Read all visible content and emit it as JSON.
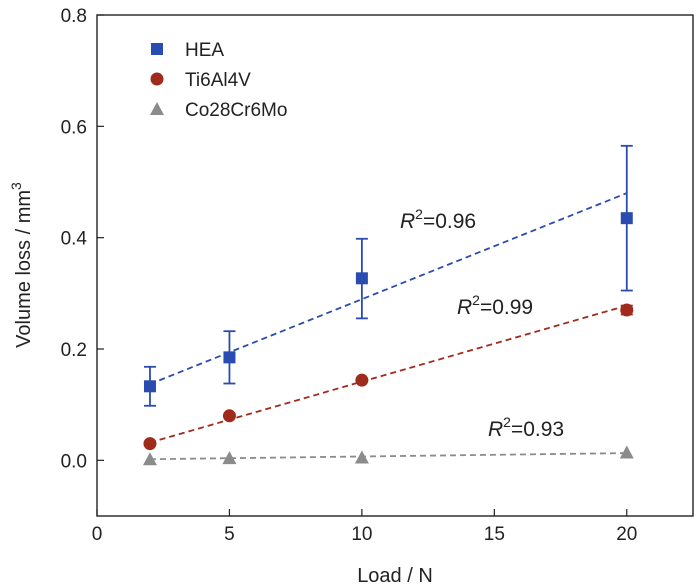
{
  "chart_data": {
    "type": "scatter",
    "title": "",
    "xlabel": "Load / N",
    "ylabel": {
      "main": "Volume loss / mm",
      "sup": "3"
    },
    "xlim": [
      0,
      22.5
    ],
    "ylim": [
      -0.1,
      0.8
    ],
    "xticks": [
      "0",
      "5",
      "10",
      "15",
      "20"
    ],
    "yticks": [
      "0.0",
      "0.2",
      "0.4",
      "0.6",
      "0.8"
    ],
    "grid": false,
    "legend_position": "top-left",
    "series": [
      {
        "name": "HEA",
        "marker": "square",
        "color": "#2a4cb0",
        "x": [
          2,
          5,
          10,
          20
        ],
        "y": [
          0.133,
          0.185,
          0.327,
          0.435
        ],
        "err_low": [
          0.098,
          0.138,
          0.255,
          0.305
        ],
        "err_high": [
          0.168,
          0.232,
          0.398,
          0.565
        ],
        "fit": {
          "x": [
            2,
            20
          ],
          "y": [
            0.137,
            0.48
          ],
          "r2_base": "R",
          "r2_sup": "2",
          "r2_value": "=0.96"
        }
      },
      {
        "name": "Ti6Al4V",
        "marker": "circle",
        "color": "#a02a1c",
        "x": [
          2,
          5,
          10,
          20
        ],
        "y": [
          0.03,
          0.08,
          0.144,
          0.27
        ],
        "err_low": [
          0.03,
          0.08,
          0.144,
          0.262
        ],
        "err_high": [
          0.03,
          0.08,
          0.144,
          0.278
        ],
        "fit": {
          "x": [
            2,
            20
          ],
          "y": [
            0.032,
            0.278
          ],
          "r2_base": "R",
          "r2_sup": "2",
          "r2_value": "=0.99"
        }
      },
      {
        "name": "Co28Cr6Mo",
        "marker": "triangle",
        "color": "#8b8b8b",
        "x": [
          2,
          5,
          10,
          20
        ],
        "y": [
          0.002,
          0.004,
          0.005,
          0.014
        ],
        "err_low": [
          0.002,
          0.004,
          0.005,
          0.014
        ],
        "err_high": [
          0.002,
          0.004,
          0.005,
          0.014
        ],
        "fit": {
          "x": [
            2,
            20
          ],
          "y": [
            0.002,
            0.013
          ],
          "r2_base": "R",
          "r2_sup": "2",
          "r2_value": "=0.93"
        }
      }
    ]
  }
}
